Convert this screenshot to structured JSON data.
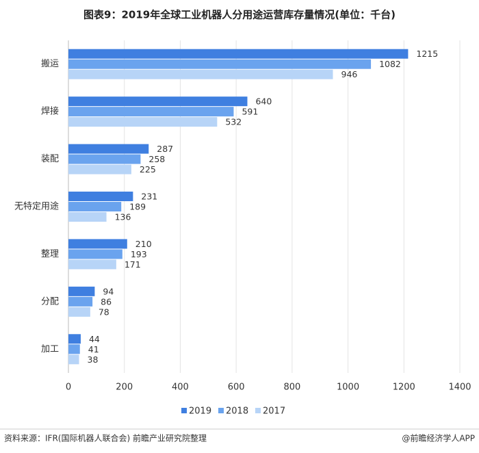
{
  "chart_data": {
    "type": "bar",
    "orientation": "horizontal",
    "title": "图表9：2019年全球工业机器人分用途运营库存量情况(单位：千台)",
    "categories": [
      "搬运",
      "焊接",
      "装配",
      "无特定用途",
      "整理",
      "分配",
      "加工"
    ],
    "series": [
      {
        "name": "2019",
        "color": "#3f7fe0",
        "values": [
          1215,
          640,
          287,
          231,
          210,
          94,
          44
        ]
      },
      {
        "name": "2018",
        "color": "#6aa3ee",
        "values": [
          1082,
          591,
          258,
          189,
          193,
          86,
          41
        ]
      },
      {
        "name": "2017",
        "color": "#b7d4f7",
        "values": [
          946,
          532,
          225,
          136,
          171,
          78,
          38
        ]
      }
    ],
    "xlim": [
      0,
      1400
    ],
    "xticks": [
      0,
      200,
      400,
      600,
      800,
      1000,
      1200,
      1400
    ],
    "grid": true,
    "legend": "bottom"
  },
  "footer": {
    "source": "资料来源：IFR(国际机器人联合会) 前瞻产业研究院整理",
    "credit": "@前瞻经济学人APP"
  }
}
